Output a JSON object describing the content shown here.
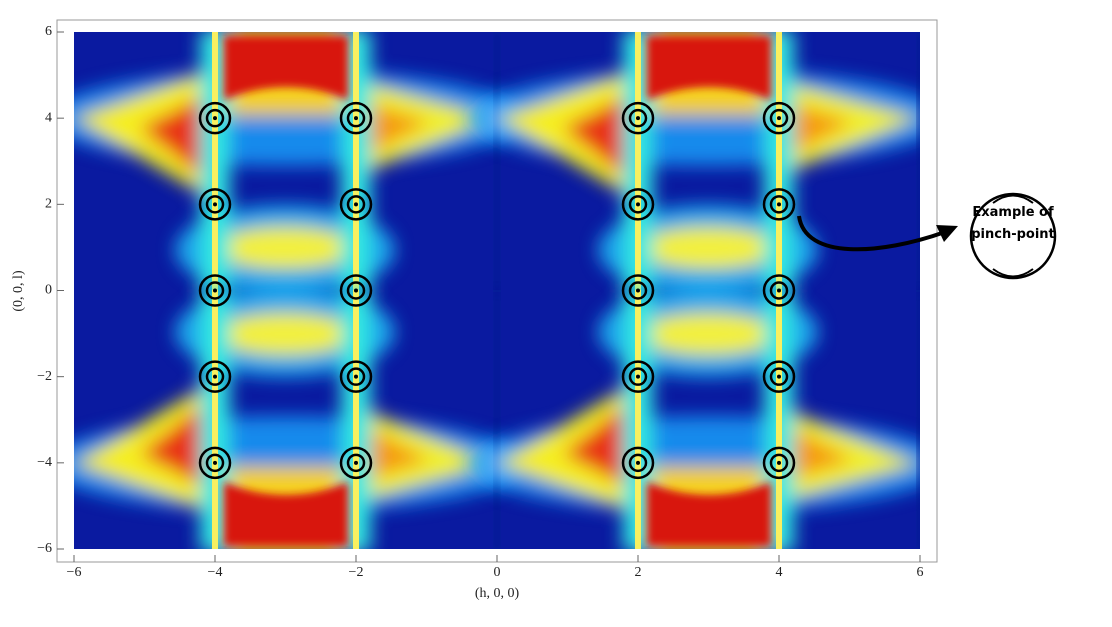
{
  "chart_data": {
    "type": "scatter",
    "x_label": "(h, 0, 0)",
    "y_label": "(0, 0, l)",
    "xlim": [
      -6,
      6
    ],
    "ylim": [
      -6,
      6
    ],
    "xticks": [
      {
        "value": -6,
        "label": "−6"
      },
      {
        "value": -4,
        "label": "−4"
      },
      {
        "value": -2,
        "label": "−2"
      },
      0,
      2,
      4,
      6
    ],
    "yticks": [
      {
        "value": -6,
        "label": "−6"
      },
      {
        "value": -4,
        "label": "−4"
      },
      {
        "value": -2,
        "label": "−2"
      },
      0,
      2,
      4,
      6
    ],
    "series": [
      {
        "color": "#000000",
        "x": [
          -4,
          -4,
          -4,
          -4,
          -4,
          -2,
          -2,
          -2,
          -2,
          -2,
          2,
          2,
          2,
          2,
          2,
          4,
          4,
          4,
          4,
          4
        ],
        "y": [
          4,
          2,
          0,
          -2,
          -4,
          4,
          2,
          0,
          -2,
          -4,
          4,
          2,
          0,
          -2,
          -4,
          4,
          2,
          0,
          -2,
          -4
        ]
      }
    ],
    "annotation": [
      "Example of",
      "pinch-point"
    ]
  }
}
